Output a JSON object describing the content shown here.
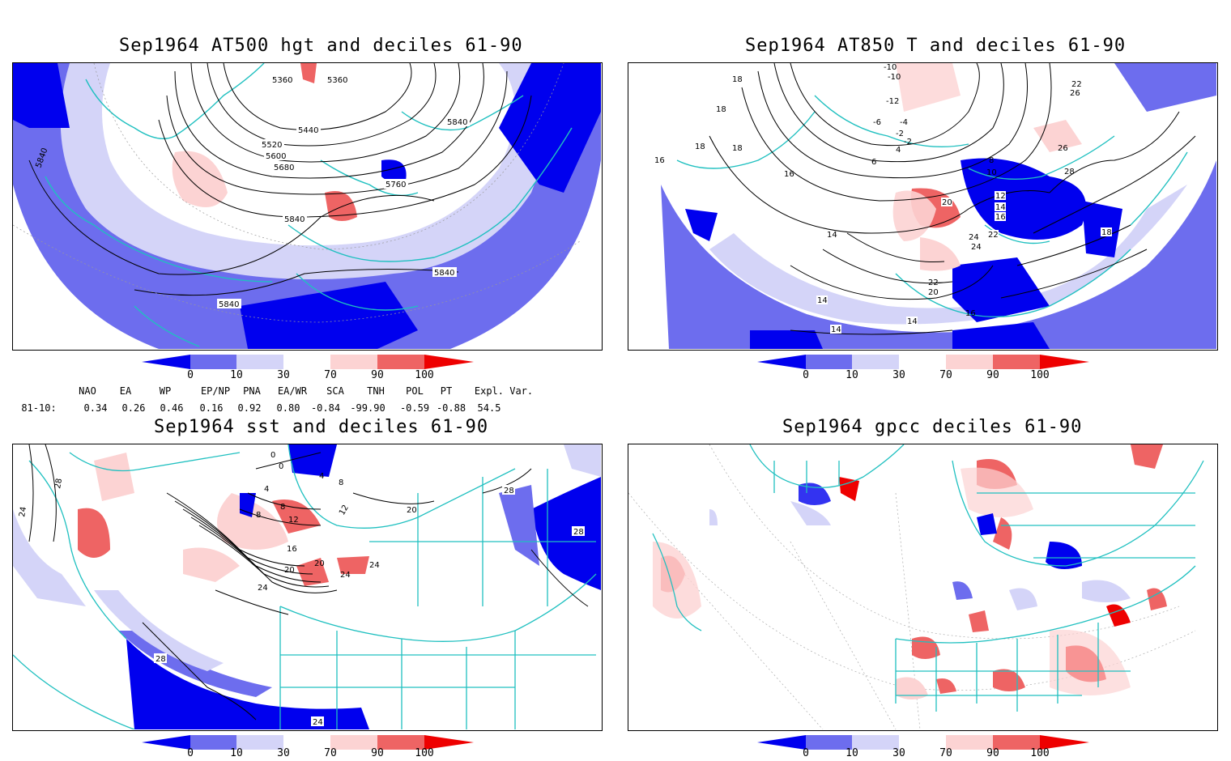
{
  "panels": [
    {
      "title": "Sep1964 AT500 hgt and deciles 61-90",
      "contour_labels": [
        "5360",
        "5360",
        "5440",
        "5520",
        "5600",
        "5680",
        "5760",
        "5840",
        "5840",
        "5840",
        "5840",
        "5840"
      ]
    },
    {
      "title": "Sep1964 AT850 T and deciles 61-90",
      "contour_labels": [
        "-10",
        "-10",
        "-12",
        "-6",
        "-4",
        "-2",
        "-2",
        "4",
        "6",
        "8",
        "10",
        "12",
        "14",
        "16",
        "16",
        "16",
        "18",
        "18",
        "18",
        "18",
        "18",
        "20",
        "20",
        "22",
        "22",
        "22",
        "24",
        "24",
        "26",
        "26",
        "28",
        "14",
        "14",
        "14",
        "14",
        "16"
      ]
    },
    {
      "title": "Sep1964 sst and deciles 61-90",
      "contour_labels": [
        "28",
        "24",
        "0",
        "0",
        "4",
        "4",
        "8",
        "8",
        "8",
        "12",
        "12",
        "16",
        "20",
        "20",
        "20",
        "24",
        "24",
        "24",
        "28",
        "28",
        "28",
        "24"
      ]
    },
    {
      "title": "Sep1964 gpcc deciles 61-90",
      "contour_labels": []
    }
  ],
  "colorbar": {
    "ticks": [
      "0",
      "10",
      "30",
      "70",
      "90",
      "100"
    ],
    "colors": [
      "#0000ee",
      "#6d6dee",
      "#d4d4f8",
      "#ffffff",
      "#fcd3d3",
      "#ee6464",
      "#ee0000"
    ]
  },
  "indices": {
    "headers": [
      "NAO",
      "EA",
      "WP",
      "EP/NP",
      "PNA",
      "EA/WR",
      "SCA",
      "TNH",
      "POL",
      "PT",
      "Expl. Var."
    ],
    "row_label": "81-10:",
    "values": [
      "0.34",
      "0.26",
      "0.46",
      "0.16",
      "0.92",
      "0.80",
      "-0.84",
      "-99.90",
      "-0.59",
      "-0.88",
      "54.5"
    ]
  }
}
